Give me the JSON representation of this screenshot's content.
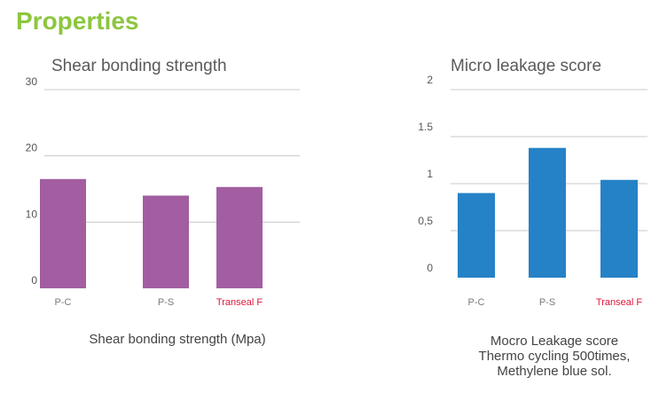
{
  "page": {
    "title": "Properties",
    "accent_color": "#8dc63f"
  },
  "chart_data": [
    {
      "type": "bar",
      "title": "Shear bonding strength",
      "categories": [
        "P-C",
        "P-S",
        "Transeal F"
      ],
      "values": [
        16.5,
        14,
        15.3
      ],
      "ylim": [
        0,
        30
      ],
      "yticks": [
        "0",
        "10",
        "20",
        "30"
      ],
      "grid": true,
      "highlight_category": "Transeal F",
      "bar_color": "#a25ea1",
      "highlight_color": "#e0163b",
      "caption": [
        "Shear bonding strength (Mpa)"
      ]
    },
    {
      "type": "bar",
      "title": "Micro leakage score",
      "categories": [
        "P-C",
        "P-S",
        "Transeal F"
      ],
      "values": [
        0.9,
        1.38,
        1.04
      ],
      "ylim": [
        0,
        2
      ],
      "yticks": [
        "0",
        "0,5",
        "1",
        "1.5",
        "2"
      ],
      "grid": true,
      "highlight_category": "Transeal F",
      "bar_color": "#2682c6",
      "highlight_color": "#e0163b",
      "caption": [
        "Mocro Leakage score",
        "Thermo cycling 500times,",
        "Methylene blue sol."
      ]
    }
  ]
}
